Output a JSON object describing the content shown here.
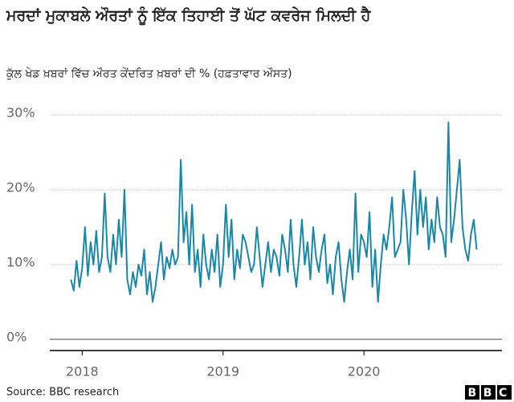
{
  "chart_data": {
    "type": "line",
    "title": "ਮਰਦਾਂ ਮੁਕਾਬਲੇ ਔਰਤਾਂ ਨੂੰ ਇੱਕ ਤਿਹਾਈ ਤੋਂ ਘੱਟ ਕਵਰੇਜ ਮਿਲਦੀ ਹੈ",
    "subtitle": "ਕੁੱਲ ਖੇਡ ਖ਼ਬਰਾਂ ਵਿੱਚ ਔਰਤ ਕੇਂਦਰਿਤ ਖ਼ਬਰਾਂ ਦੀ % (ਹਫ਼ਤਾਵਾਰ ਔਸਤ)",
    "source": "Source: BBC research",
    "logo": "BBC",
    "color": "#1a87a7",
    "x": [
      2017.92,
      2017.94,
      2017.96,
      2017.98,
      2018,
      2018.02,
      2018.04,
      2018.06,
      2018.08,
      2018.1,
      2018.12,
      2018.14,
      2018.16,
      2018.18,
      2018.2,
      2018.22,
      2018.24,
      2018.26,
      2018.28,
      2018.3,
      2018.32,
      2018.34,
      2018.36,
      2018.38,
      2018.4,
      2018.42,
      2018.44,
      2018.46,
      2018.48,
      2018.5,
      2018.52,
      2018.54,
      2018.56,
      2018.58,
      2018.6,
      2018.62,
      2018.64,
      2018.66,
      2018.68,
      2018.7,
      2018.72,
      2018.74,
      2018.76,
      2018.78,
      2018.8,
      2018.82,
      2018.84,
      2018.86,
      2018.88,
      2018.9,
      2018.92,
      2018.94,
      2018.96,
      2018.98,
      2019,
      2019.02,
      2019.04,
      2019.06,
      2019.08,
      2019.1,
      2019.12,
      2019.14,
      2019.16,
      2019.18,
      2019.2,
      2019.22,
      2019.24,
      2019.26,
      2019.28,
      2019.3,
      2019.32,
      2019.34,
      2019.36,
      2019.38,
      2019.4,
      2019.42,
      2019.44,
      2019.46,
      2019.48,
      2019.5,
      2019.52,
      2019.54,
      2019.56,
      2019.58,
      2019.6,
      2019.62,
      2019.64,
      2019.66,
      2019.68,
      2019.7,
      2019.72,
      2019.74,
      2019.76,
      2019.78,
      2019.8,
      2019.82,
      2019.84,
      2019.86,
      2019.88,
      2019.9,
      2019.92,
      2019.94,
      2019.96,
      2019.98,
      2020,
      2020.02,
      2020.04,
      2020.06,
      2020.08,
      2020.1,
      2020.12,
      2020.14,
      2020.16,
      2020.18,
      2020.2,
      2020.22,
      2020.24,
      2020.26,
      2020.28,
      2020.3,
      2020.32,
      2020.34,
      2020.36,
      2020.38,
      2020.4,
      2020.42,
      2020.44,
      2020.46,
      2020.48,
      2020.5,
      2020.52,
      2020.54,
      2020.56,
      2020.58,
      2020.6,
      2020.62,
      2020.64,
      2020.66,
      2020.68,
      2020.7,
      2020.72,
      2020.74,
      2020.76,
      2020.78,
      2020.8
    ],
    "values": [
      8,
      6.5,
      10.5,
      7,
      9.5,
      15,
      8.5,
      13,
      10,
      14.5,
      9,
      11,
      19.5,
      11,
      9,
      14,
      10,
      16,
      11,
      20,
      8,
      6,
      9,
      7,
      10,
      8.5,
      12,
      6,
      9,
      5,
      7,
      10,
      13,
      8,
      11,
      9.5,
      12,
      10,
      11,
      24,
      13,
      17,
      10,
      18,
      9,
      12,
      7,
      14,
      10,
      8,
      12,
      9,
      14,
      7,
      10,
      18,
      11,
      16,
      8,
      12,
      9.5,
      14,
      13,
      11,
      9,
      10,
      15,
      11,
      7,
      10,
      13,
      9,
      12,
      11,
      8.5,
      14,
      12,
      9,
      16,
      10,
      7,
      11,
      16,
      10,
      13,
      8,
      15,
      11,
      9,
      12,
      14,
      7.5,
      10,
      6,
      11,
      13,
      8,
      5,
      9,
      12,
      8,
      19.5,
      9,
      14,
      13,
      11,
      17,
      7,
      12,
      5,
      10,
      14,
      12,
      15,
      19,
      11,
      12,
      13,
      20,
      16,
      10,
      17,
      22.5,
      14,
      20,
      15,
      19,
      12,
      16,
      13,
      19,
      15,
      14,
      11,
      29,
      13,
      16,
      20,
      24,
      15,
      12,
      10.5,
      14,
      16,
      12
    ],
    "xlim": [
      2017.77,
      2020.98
    ],
    "xticks": [
      2018,
      2019,
      2020
    ],
    "ylim": [
      0,
      31.5
    ],
    "yticks": [
      {
        "value": 0,
        "label": "0%"
      },
      {
        "value": 10,
        "label": "10%"
      },
      {
        "value": 20,
        "label": "20%"
      },
      {
        "value": 30,
        "label": "30%"
      }
    ],
    "grid": true
  }
}
